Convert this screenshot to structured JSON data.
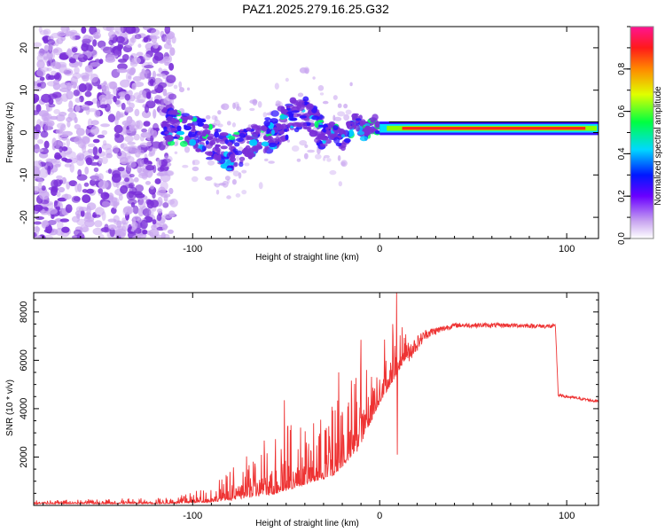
{
  "title": "PAZ1.2025.279.16.25.G32",
  "colors": {
    "snr_line": "#ee3333",
    "spec_purple": "#7a2fd8",
    "spec_light": "#c9a6f0"
  },
  "chart_data": [
    {
      "type": "heatmap",
      "name": "spectrogram",
      "xlabel": "Height of straight line (km)",
      "ylabel": "Frequency (Hz)",
      "xlim": [
        -185,
        117
      ],
      "ylim": [
        -25,
        25
      ],
      "xticks": [
        {
          "value": -100,
          "label": "-100"
        },
        {
          "value": 0,
          "label": "0"
        },
        {
          "value": 100,
          "label": "100"
        }
      ],
      "yticks": [
        {
          "value": -20,
          "label": "-20"
        },
        {
          "value": -10,
          "label": "-10"
        },
        {
          "value": 0,
          "label": "0"
        },
        {
          "value": 10,
          "label": "10"
        },
        {
          "value": 20,
          "label": "20"
        }
      ],
      "colorbar": {
        "label": "Normalized spectral amplitude",
        "range": [
          0,
          1
        ],
        "ticks": [
          {
            "value": 0.0,
            "label": "0.0"
          },
          {
            "value": 0.2,
            "label": "0.2"
          },
          {
            "value": 0.4,
            "label": "0.4"
          },
          {
            "value": 0.6,
            "label": "0.6"
          },
          {
            "value": 0.8,
            "label": "0.8"
          }
        ]
      },
      "ridge": [
        {
          "x": -113,
          "f": 1.5
        },
        {
          "x": -105,
          "f": 1
        },
        {
          "x": -95,
          "f": -1
        },
        {
          "x": -88,
          "f": -3
        },
        {
          "x": -80,
          "f": -5
        },
        {
          "x": -72,
          "f": -3
        },
        {
          "x": -65,
          "f": -2
        },
        {
          "x": -58,
          "f": 0
        },
        {
          "x": -52,
          "f": 2
        },
        {
          "x": -45,
          "f": 4
        },
        {
          "x": -40,
          "f": 5
        },
        {
          "x": -35,
          "f": 2
        },
        {
          "x": -30,
          "f": -1
        },
        {
          "x": -25,
          "f": 1
        },
        {
          "x": -20,
          "f": -2
        },
        {
          "x": -15,
          "f": 1
        },
        {
          "x": -12,
          "f": 3
        },
        {
          "x": -8,
          "f": 0
        },
        {
          "x": -4,
          "f": 2
        },
        {
          "x": 0,
          "f": 1
        },
        {
          "x": 5,
          "f": 1.5
        },
        {
          "x": 10,
          "f": 1
        },
        {
          "x": 20,
          "f": 1
        },
        {
          "x": 40,
          "f": 1
        },
        {
          "x": 60,
          "f": 1
        },
        {
          "x": 80,
          "f": 1
        },
        {
          "x": 95,
          "f": 1
        },
        {
          "x": 110,
          "f": 1
        },
        {
          "x": 117,
          "f": 1
        }
      ]
    },
    {
      "type": "line",
      "name": "snr",
      "xlabel": "Height of straight line (km)",
      "ylabel": "SNR (10 * v/v)",
      "xlim": [
        -185,
        117
      ],
      "ylim": [
        0,
        8800
      ],
      "xticks": [
        {
          "value": -100,
          "label": "-100"
        },
        {
          "value": 0,
          "label": "0"
        },
        {
          "value": 100,
          "label": "100"
        }
      ],
      "yticks": [
        {
          "value": 2000,
          "label": "2000"
        },
        {
          "value": 4000,
          "label": "4000"
        },
        {
          "value": 6000,
          "label": "6000"
        },
        {
          "value": 8000,
          "label": "8000"
        }
      ],
      "envelope": [
        {
          "x": -185,
          "base": 80,
          "spread": 150
        },
        {
          "x": -110,
          "base": 100,
          "spread": 250
        },
        {
          "x": -90,
          "base": 200,
          "spread": 700
        },
        {
          "x": -70,
          "base": 500,
          "spread": 1800
        },
        {
          "x": -55,
          "base": 800,
          "spread": 3200
        },
        {
          "x": -40,
          "base": 1100,
          "spread": 2400
        },
        {
          "x": -25,
          "base": 1500,
          "spread": 3000
        },
        {
          "x": -12,
          "base": 2600,
          "spread": 3800
        },
        {
          "x": 0,
          "base": 4500,
          "spread": 2600
        },
        {
          "x": 8,
          "base": 5500,
          "spread": 2500
        },
        {
          "x": 15,
          "base": 6300,
          "spread": 900
        },
        {
          "x": 25,
          "base": 7100,
          "spread": 400
        },
        {
          "x": 40,
          "base": 7450,
          "spread": 200
        },
        {
          "x": 70,
          "base": 7450,
          "spread": 180
        },
        {
          "x": 94,
          "base": 7400,
          "spread": 180
        },
        {
          "x": 95.5,
          "base": 4550,
          "spread": 120
        },
        {
          "x": 117,
          "base": 4300,
          "spread": 120
        }
      ],
      "peaks": [
        {
          "x": 9,
          "y": 8800
        },
        {
          "x": 7,
          "y": 7500
        },
        {
          "x": -10,
          "y": 6850
        },
        {
          "x": -22,
          "y": 5500
        },
        {
          "x": -51,
          "y": 4350
        },
        {
          "x": 9.5,
          "y": 2100
        }
      ]
    }
  ]
}
